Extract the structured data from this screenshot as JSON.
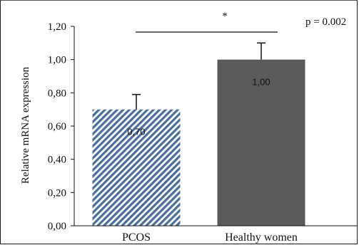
{
  "chart_data": {
    "type": "bar",
    "categories": [
      "PCOS",
      "Healthy women"
    ],
    "values": [
      0.7,
      1.0
    ],
    "error_bars": [
      0.09,
      0.1
    ],
    "data_labels": [
      "0,70",
      "1,00"
    ],
    "ylabel": "Relative mRNA expression",
    "ylim": [
      0,
      1.2
    ],
    "yticks": [
      "0,00",
      "0,20",
      "0,40",
      "0,60",
      "0,80",
      "1,00",
      "1,20"
    ],
    "significance": {
      "marker": "*",
      "pvalue": "p = 0.002"
    },
    "bar_styles": [
      {
        "fill": "hatched",
        "color": "#4a6e9c"
      },
      {
        "fill": "solid",
        "color": "#5a5a5a"
      }
    ],
    "grid": false,
    "legend": "none"
  }
}
